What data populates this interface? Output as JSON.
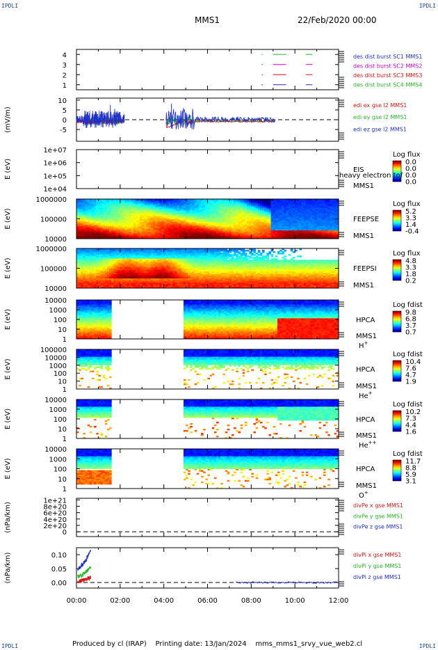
{
  "corners": {
    "tl": "IPDLI",
    "tr": "IPDLI",
    "bl": "IPDLI",
    "br": "IPDLI"
  },
  "header": {
    "mission": "MMS1",
    "datetime": "22/Feb/2020 00:00"
  },
  "footer": {
    "credit": "Produced by cl (IRAP)",
    "printed": "Printing date: 13/Jan/2024",
    "file": "mms_mms1_srvy_vue_web2.cl"
  },
  "colors": {
    "c1": "#1e2fd0",
    "c2": "#cc00cc",
    "c3": "#dd1111",
    "c4": "#22bb22",
    "grid": "#000000"
  },
  "chart_data": [
    {
      "type": "line",
      "panel": "des-dist",
      "ylim": [
        0.5,
        4.5
      ],
      "yticks": [
        "1",
        "2",
        "3",
        "4"
      ],
      "ylabel": "",
      "series": [
        {
          "name": "des dist burst SC1 MMS1",
          "color": "#1e2fd0"
        },
        {
          "name": "des dist burst SC2 MMS2",
          "color": "#cc00cc"
        },
        {
          "name": "des dist burst SC3 MMS3",
          "color": "#dd1111"
        },
        {
          "name": "des dist burst SC4 MMS4",
          "color": "#22bb22"
        }
      ]
    },
    {
      "type": "line",
      "panel": "edi-e",
      "ylim": [
        -11,
        11
      ],
      "yticks": [
        "-5",
        "0",
        "5",
        "10"
      ],
      "ylabel": "(mV/m)",
      "series": [
        {
          "name": "edi ex gse l2 MMS1",
          "color": "#dd1111"
        },
        {
          "name": "edi ey gse l2 MMS1",
          "color": "#22bb22"
        },
        {
          "name": "edi ez gse l2 MMS1",
          "color": "#1e2fd0"
        }
      ]
    },
    {
      "type": "heatmap",
      "panel": "eis",
      "ylabel": "E (eV)",
      "yticks": [
        "1e+04",
        "1e+05",
        "1e+06",
        "1e+07"
      ],
      "label1": "EIS",
      "label2": "MMS1",
      "overlay": "heavy electron tof",
      "cbar_title": "Log flux",
      "cbar_ticks": [
        "0.0",
        "0.0",
        "0.0",
        "0.0"
      ]
    },
    {
      "type": "heatmap",
      "panel": "feeps-e",
      "ylabel": "E (eV)",
      "yticks": [
        "10000",
        "100000",
        "1000000"
      ],
      "label1": "FEEPSE",
      "label2": "MMS1",
      "cbar_title": "Log flux",
      "cbar_ticks": [
        "5.2",
        "3.3",
        "1.4",
        "-0.4"
      ]
    },
    {
      "type": "heatmap",
      "panel": "feeps-i",
      "ylabel": "E (eV)",
      "yticks": [
        "10000",
        "100000",
        "1000000"
      ],
      "label1": "FEEPSI",
      "label2": "MMS1",
      "cbar_title": "Log flux",
      "cbar_ticks": [
        "4.8",
        "3.3",
        "1.8",
        "0.2"
      ]
    },
    {
      "type": "heatmap",
      "panel": "hpca-h",
      "ylabel": "E (eV)",
      "yticks": [
        "1",
        "10",
        "100",
        "1000",
        "10000"
      ],
      "label1": "HPCA",
      "label2": "MMS1",
      "species": "H",
      "charge": "+",
      "cbar_title": "Log fdist",
      "cbar_ticks": [
        "9.8",
        "6.8",
        "3.7",
        "0.7"
      ]
    },
    {
      "type": "heatmap",
      "panel": "hpca-he",
      "ylabel": "E (eV)",
      "yticks": [
        "1",
        "10",
        "100",
        "1000",
        "10000",
        "100000"
      ],
      "label1": "HPCA",
      "label2": "MMS1",
      "species": "He",
      "charge": "+",
      "cbar_title": "Log fdist",
      "cbar_ticks": [
        "10.4",
        "7.6",
        "4.7",
        "1.9"
      ]
    },
    {
      "type": "heatmap",
      "panel": "hpca-he2",
      "ylabel": "E (eV)",
      "yticks": [
        "1",
        "10",
        "100",
        "1000",
        "10000"
      ],
      "label1": "HPCA",
      "label2": "MMS1",
      "species": "He",
      "charge": "++",
      "cbar_title": "Log fdist",
      "cbar_ticks": [
        "10.2",
        "7.3",
        "4.4",
        "1.6"
      ]
    },
    {
      "type": "heatmap",
      "panel": "hpca-o",
      "ylabel": "E (eV)",
      "yticks": [
        "1",
        "10",
        "100",
        "1000",
        "10000"
      ],
      "label1": "HPCA",
      "label2": "MMS1",
      "species": "O",
      "charge": "+",
      "cbar_title": "Log fdist",
      "cbar_ticks": [
        "11.7",
        "8.8",
        "5.9",
        "3.1"
      ]
    },
    {
      "type": "line",
      "panel": "divpe",
      "ylim": [
        -1.5e+20,
        1.05e+21
      ],
      "yticks": [
        "0",
        "2e+20",
        "4e+20",
        "6e+20",
        "8e+20",
        "1e+21"
      ],
      "ylabel": "(nPa/km)",
      "series": [
        {
          "name": "divPe x gse MMS1",
          "color": "#dd1111"
        },
        {
          "name": "divPe y gse MMS1",
          "color": "#22bb22"
        },
        {
          "name": "divPe z gse MMS1",
          "color": "#1e2fd0"
        }
      ]
    },
    {
      "type": "line",
      "panel": "divpi",
      "ylim": [
        -0.02,
        0.125
      ],
      "yticks": [
        "0.00",
        "0.05",
        "0.10"
      ],
      "ylabel": "(nPa/km)",
      "series": [
        {
          "name": "divPi x gse MMS1",
          "color": "#dd1111"
        },
        {
          "name": "divPi y gse MMS1",
          "color": "#22bb22"
        },
        {
          "name": "divPi z gse MMS1",
          "color": "#1e2fd0"
        }
      ]
    }
  ],
  "xaxis": {
    "ticks": [
      "00:00",
      "02:00",
      "04:00",
      "06:00",
      "08:00",
      "10:00",
      "12:00"
    ],
    "range_h": [
      0,
      12
    ]
  }
}
